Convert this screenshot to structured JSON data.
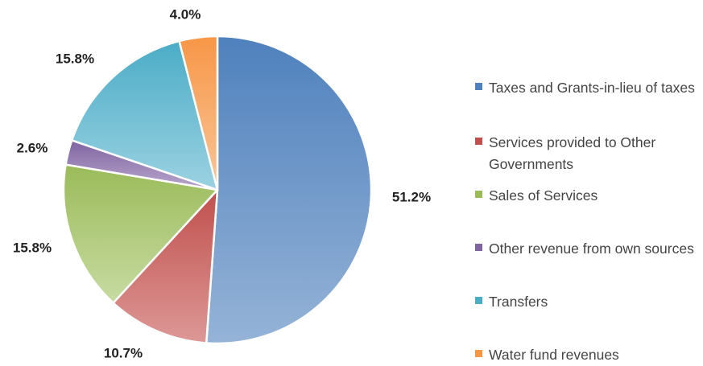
{
  "chart_data": {
    "type": "pie",
    "title": "",
    "slices": [
      {
        "label": "Taxes and Grants-in-lieu of taxes",
        "value": 51.2,
        "display": "51.2%",
        "color": "#4f81bd",
        "color_light": "#95b3d7"
      },
      {
        "label": "Services provided to Other Governments",
        "value": 10.7,
        "display": "10.7%",
        "color": "#c0504d",
        "color_light": "#dd9896"
      },
      {
        "label": "Sales of Services",
        "value": 15.8,
        "display": "15.8%",
        "color": "#9bbb59",
        "color_light": "#c7dba2"
      },
      {
        "label": "Other revenue from own sources",
        "value": 2.6,
        "display": "2.6%",
        "color": "#8064a2",
        "color_light": "#b8a7cc"
      },
      {
        "label": "Transfers",
        "value": 15.8,
        "display": "15.8%",
        "color": "#4bacc6",
        "color_light": "#9bd2e2"
      },
      {
        "label": "Water fund revenues",
        "value": 4.0,
        "display": "4.0%",
        "color": "#f79646",
        "color_light": "#fac69a"
      }
    ],
    "legend_position": "right"
  }
}
